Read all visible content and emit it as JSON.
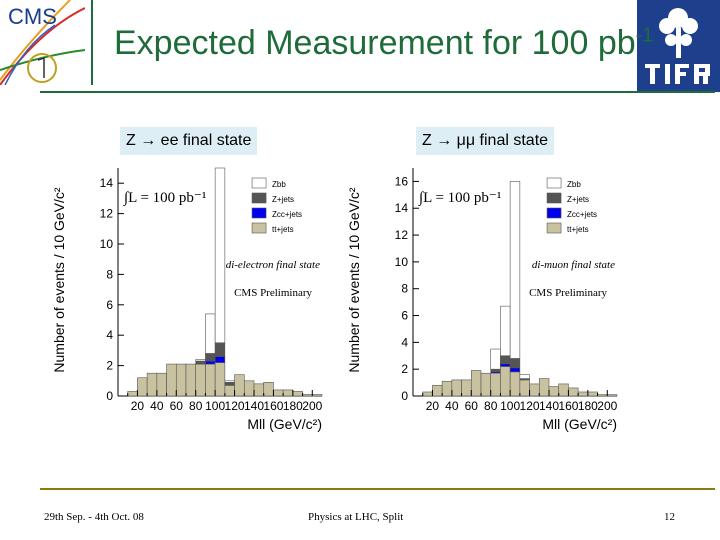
{
  "header": {
    "title": "Expected Measurement for 100 pb",
    "title_suffix": "-1",
    "cms_logo_text": "CMS",
    "accent_color": "#1f6b3a"
  },
  "footer": {
    "left": "29th Sep. - 4th Oct. 08",
    "center": "Physics at LHC, Split",
    "right": "12"
  },
  "chart_data": [
    {
      "type": "bar",
      "label": "Z → ee final state",
      "ylabel": "Number of events / 10 GeV/c²",
      "xlabel": "Mll (GeV/c²)",
      "xlim": [
        0,
        210
      ],
      "ylim": [
        0,
        15
      ],
      "xticks": [
        20,
        40,
        60,
        80,
        100,
        120,
        140,
        160,
        180,
        200
      ],
      "yticks": [
        0,
        2,
        4,
        6,
        8,
        10,
        12,
        14
      ],
      "lumi_text": "∫L = 100 pb⁻¹",
      "annotations": [
        "di-electron final state",
        "CMS Preliminary"
      ],
      "legend": [
        {
          "name": "Zbb",
          "color": "#ffffff"
        },
        {
          "name": "Z+jets",
          "color": "#555555"
        },
        {
          "name": "Zcc+jets",
          "color": "#0000ee"
        },
        {
          "name": "tt+jets",
          "color": "#c8c2a0"
        }
      ],
      "bins": [
        10,
        20,
        30,
        40,
        50,
        60,
        70,
        80,
        90,
        100,
        110,
        120,
        130,
        140,
        150,
        160,
        170,
        180,
        190,
        200
      ],
      "series": [
        {
          "name": "tt+jets",
          "values": [
            0.3,
            1.2,
            1.5,
            1.5,
            2.1,
            2.1,
            2.1,
            2.1,
            2.1,
            2.2,
            0.7,
            1.4,
            1.0,
            0.8,
            0.9,
            0.4,
            0.4,
            0.3,
            0.1,
            0.1
          ]
        },
        {
          "name": "Zcc+jets",
          "values": [
            0,
            0,
            0,
            0,
            0,
            0,
            0,
            0,
            0.2,
            0.4,
            0,
            0,
            0,
            0,
            0,
            0,
            0,
            0,
            0,
            0
          ]
        },
        {
          "name": "Z+jets",
          "values": [
            0,
            0,
            0,
            0,
            0,
            0,
            0,
            0.2,
            0.5,
            0.9,
            0.2,
            0,
            0,
            0,
            0,
            0,
            0,
            0,
            0,
            0
          ]
        },
        {
          "name": "Zbb",
          "values": [
            0,
            0,
            0,
            0,
            0,
            0,
            0,
            0.1,
            2.6,
            11.5,
            0.1,
            0,
            0,
            0,
            0,
            0,
            0,
            0,
            0,
            0
          ]
        }
      ]
    },
    {
      "type": "bar",
      "label": "Z → μμ final state",
      "ylabel": "Number of events / 10 GeV/c²",
      "xlabel": "Mll (GeV/c²)",
      "xlim": [
        0,
        210
      ],
      "ylim": [
        0,
        17
      ],
      "xticks": [
        20,
        40,
        60,
        80,
        100,
        120,
        140,
        160,
        180,
        200
      ],
      "yticks": [
        0,
        2,
        4,
        6,
        8,
        10,
        12,
        14,
        16
      ],
      "lumi_text": "∫L = 100 pb⁻¹",
      "annotations": [
        "di-muon final state",
        "CMS Preliminary"
      ],
      "legend": [
        {
          "name": "Zbb",
          "color": "#ffffff"
        },
        {
          "name": "Z+jets",
          "color": "#555555"
        },
        {
          "name": "Zcc+jets",
          "color": "#0000ee"
        },
        {
          "name": "tt+jets",
          "color": "#c8c2a0"
        }
      ],
      "bins": [
        10,
        20,
        30,
        40,
        50,
        60,
        70,
        80,
        90,
        100,
        110,
        120,
        130,
        140,
        150,
        160,
        170,
        180,
        190,
        200
      ],
      "series": [
        {
          "name": "tt+jets",
          "values": [
            0.3,
            0.8,
            1.1,
            1.2,
            1.2,
            1.9,
            1.7,
            1.7,
            2.2,
            1.8,
            1.2,
            0.9,
            1.3,
            0.7,
            0.9,
            0.6,
            0.3,
            0.3,
            0.1,
            0.1
          ]
        },
        {
          "name": "Zcc+jets",
          "values": [
            0,
            0,
            0,
            0,
            0,
            0,
            0,
            0.1,
            0.2,
            0.3,
            0,
            0,
            0,
            0,
            0,
            0,
            0,
            0,
            0,
            0
          ]
        },
        {
          "name": "Z+jets",
          "values": [
            0,
            0,
            0,
            0,
            0,
            0,
            0,
            0.2,
            0.6,
            0.7,
            0.1,
            0,
            0,
            0,
            0,
            0,
            0,
            0,
            0,
            0
          ]
        },
        {
          "name": "Zbb",
          "values": [
            0,
            0,
            0,
            0,
            0,
            0,
            0,
            1.5,
            3.7,
            13.2,
            0.3,
            0,
            0,
            0,
            0,
            0,
            0,
            0,
            0,
            0
          ]
        }
      ]
    }
  ]
}
